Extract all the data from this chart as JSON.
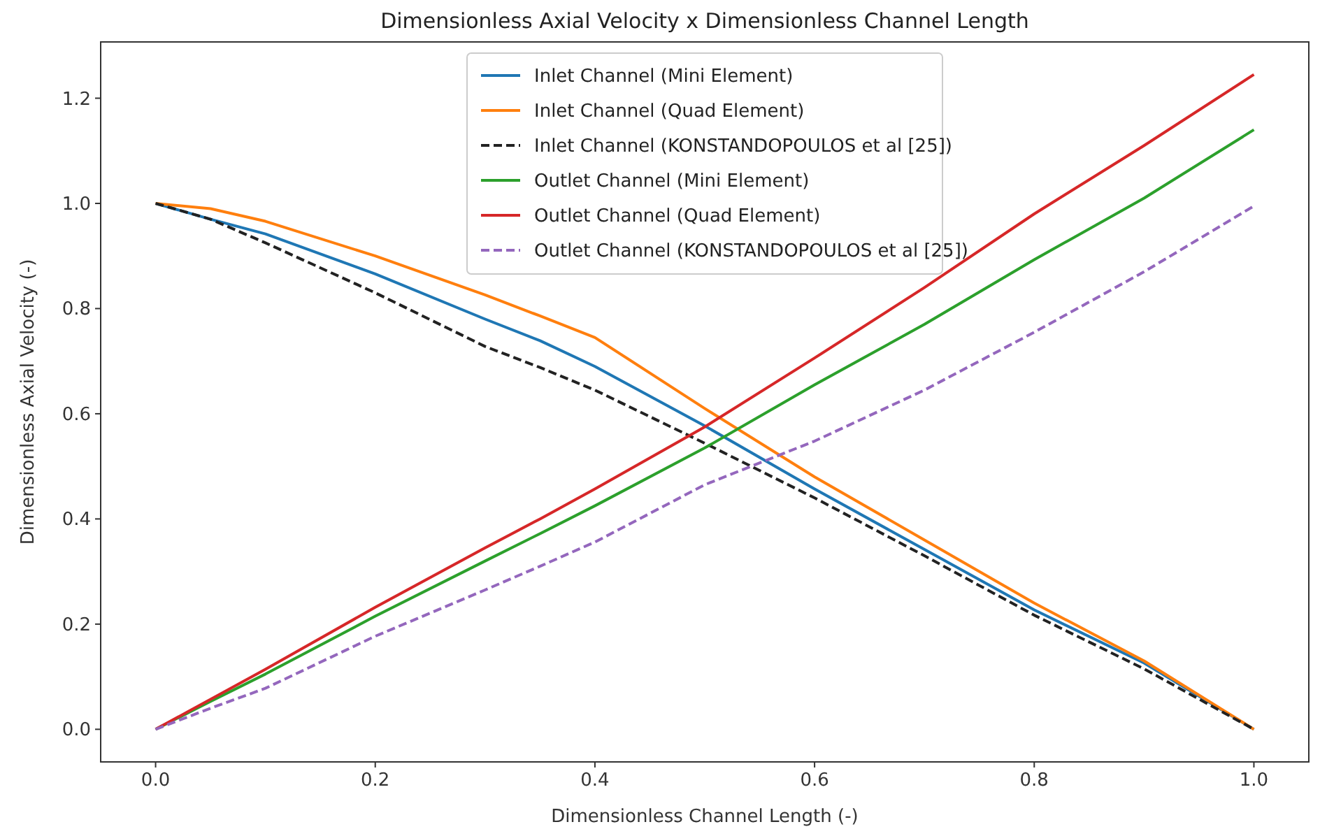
{
  "chart_data": {
    "type": "line",
    "title": "Dimensionless Axial Velocity x Dimensionless Channel Length",
    "xlabel": "Dimensionless Channel Length (-)",
    "ylabel": "Dimensionless Axial Velocity (-)",
    "x": [
      0,
      0.05,
      0.1,
      0.2,
      0.3,
      0.35,
      0.4,
      0.5,
      0.6,
      0.7,
      0.8,
      0.9,
      1.0
    ],
    "xlim": [
      -0.05,
      1.05
    ],
    "xticks": [
      {
        "value": 0,
        "label": "0.0"
      },
      0.2,
      0.4,
      0.6,
      0.8,
      {
        "value": 1,
        "label": "1.0"
      }
    ],
    "ylim": [
      -0.062,
      1.307
    ],
    "yticks": [
      {
        "value": 0,
        "label": "0.0"
      },
      0.2,
      0.4,
      0.6,
      0.8,
      {
        "value": 1,
        "label": "1.0"
      },
      1.2
    ],
    "grid": false,
    "legend": "top",
    "marker": "none",
    "series": [
      {
        "name": "Inlet Channel (Mini Element)",
        "color": "#1f77b4",
        "line_style": "solid",
        "values": [
          1.0,
          0.97,
          0.942,
          0.866,
          0.78,
          0.739,
          0.69,
          0.577,
          0.457,
          0.342,
          0.227,
          0.126,
          0.0
        ]
      },
      {
        "name": "Inlet Channel (Quad Element)",
        "color": "#ff7f0e",
        "line_style": "solid",
        "values": [
          1.0,
          0.99,
          0.966,
          0.9,
          0.826,
          0.786,
          0.745,
          0.61,
          0.48,
          0.36,
          0.24,
          0.13,
          0.0
        ]
      },
      {
        "name": "Inlet Channel (KONSTANDOPOULOS et al [25])",
        "color": "#222222",
        "line_style": "dashed",
        "values": [
          1.0,
          0.97,
          0.925,
          0.83,
          0.728,
          0.688,
          0.645,
          0.544,
          0.44,
          0.33,
          0.217,
          0.115,
          0.0
        ]
      },
      {
        "name": "Outlet Channel (Mini Element)",
        "color": "#2ca02c",
        "line_style": "solid",
        "values": [
          0,
          0.053,
          0.105,
          0.215,
          0.32,
          0.372,
          0.425,
          0.535,
          0.655,
          0.77,
          0.893,
          1.01,
          1.14
        ]
      },
      {
        "name": "Outlet Channel (Quad Element)",
        "color": "#d62728",
        "line_style": "solid",
        "values": [
          0,
          0.057,
          0.114,
          0.232,
          0.345,
          0.4,
          0.457,
          0.575,
          0.706,
          0.84,
          0.98,
          1.11,
          1.245
        ]
      },
      {
        "name": "Outlet Channel (KONSTANDOPOULOS et al [25])",
        "color": "#9467bd",
        "line_style": "dashed",
        "values": [
          0,
          0.04,
          0.078,
          0.177,
          0.265,
          0.31,
          0.356,
          0.465,
          0.548,
          0.645,
          0.755,
          0.87,
          0.995
        ]
      }
    ]
  }
}
